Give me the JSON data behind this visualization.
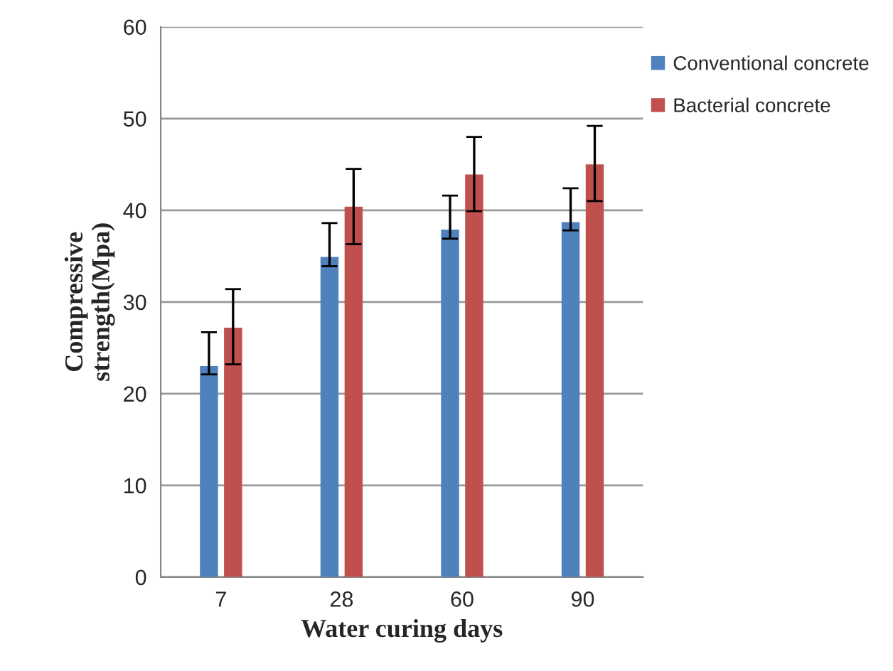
{
  "chart_data": {
    "type": "bar",
    "xlabel": "Water curing days",
    "ylabel": "Compressive\nstrength(Mpa)",
    "categories": [
      "7",
      "28",
      "60",
      "90"
    ],
    "series": [
      {
        "name": "Conventional concrete",
        "color": "#4f81bd",
        "values": [
          23.0,
          34.9,
          37.9,
          38.7
        ],
        "errors": [
          [
            22.1,
            26.7
          ],
          [
            33.9,
            38.6
          ],
          [
            36.9,
            41.6
          ],
          [
            37.8,
            42.4
          ]
        ]
      },
      {
        "name": "Bacterial concrete",
        "color": "#c0504d",
        "values": [
          27.2,
          40.4,
          43.9,
          45.0
        ],
        "errors": [
          [
            23.2,
            31.4
          ],
          [
            36.3,
            44.5
          ],
          [
            39.9,
            48.0
          ],
          [
            41.0,
            49.2
          ]
        ]
      }
    ],
    "ylim": [
      0,
      60
    ],
    "yticks": [
      0,
      10,
      20,
      30,
      40,
      50,
      60
    ],
    "grid": "y",
    "legend": "top right"
  }
}
